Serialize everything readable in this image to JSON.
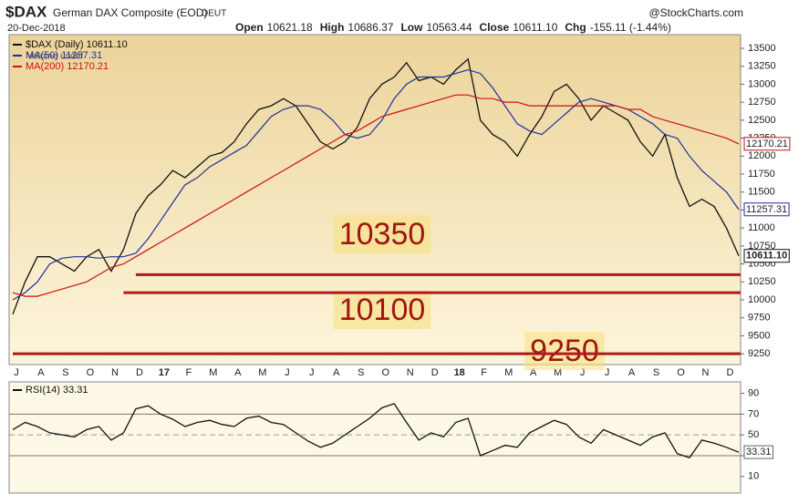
{
  "header": {
    "symbol": "$DAX",
    "name": "German DAX Composite (EOD)",
    "exchange": "DEUT",
    "date": "20-Dec-2018",
    "brand": "@StockCharts.com",
    "quote": [
      [
        "Open",
        "10621.18"
      ],
      [
        "High",
        "10686.37"
      ],
      [
        "Low",
        "10563.44"
      ],
      [
        "Close",
        "10611.10"
      ],
      [
        "Chg",
        "-155.11 (-1.44%)"
      ]
    ],
    "volume_note": "Volume undef"
  },
  "chart_data": [
    {
      "type": "line",
      "categories": [
        "J",
        null,
        "A",
        null,
        "S",
        null,
        "O",
        null,
        "N",
        null,
        "D",
        null,
        "17",
        null,
        "F",
        null,
        "M",
        null,
        "A",
        null,
        "M",
        null,
        "J",
        null,
        "J",
        null,
        "A",
        null,
        "S",
        null,
        "O",
        null,
        "N",
        null,
        "D",
        null,
        "18",
        null,
        "F",
        null,
        "M",
        null,
        "A",
        null,
        "M",
        null,
        "J",
        null,
        "J",
        null,
        "A",
        null,
        "S",
        null,
        "O",
        null,
        "N",
        null,
        "D",
        null
      ],
      "series": [
        {
          "name": "$DAX (Daily) 10611.10",
          "color": "#111111",
          "values": [
            9800,
            10250,
            10600,
            10600,
            10500,
            10400,
            10600,
            10700,
            10400,
            10700,
            11200,
            11450,
            11600,
            11800,
            11700,
            11850,
            12000,
            12050,
            12200,
            12450,
            12650,
            12700,
            12800,
            12700,
            12450,
            12200,
            12100,
            12200,
            12400,
            12800,
            13000,
            13100,
            13300,
            13050,
            13100,
            13000,
            13200,
            13350,
            12500,
            12300,
            12200,
            12000,
            12300,
            12550,
            12900,
            13000,
            12800,
            12500,
            12700,
            12600,
            12500,
            12200,
            12000,
            12300,
            11700,
            11300,
            11400,
            11300,
            11000,
            10611.1
          ],
          "value_labels": [
            null,
            null,
            null,
            null,
            null,
            null,
            null,
            null,
            null,
            null,
            null,
            null,
            null,
            null,
            null,
            null,
            null,
            null,
            null,
            null,
            null,
            null,
            null,
            null,
            null,
            null,
            null,
            null,
            null,
            null,
            null,
            null,
            null,
            null,
            null,
            null,
            null,
            null,
            null,
            null,
            null,
            null,
            null,
            null,
            null,
            null,
            null,
            null,
            null,
            null,
            null,
            null,
            null,
            null,
            null,
            null,
            null,
            null,
            null,
            "10611.10"
          ]
        },
        {
          "name": "MA(50) 11257.31",
          "color": "#1f2f9e",
          "values": [
            10000,
            10100,
            10250,
            10500,
            10580,
            10600,
            10600,
            10580,
            10600,
            10600,
            10650,
            10850,
            11100,
            11350,
            11600,
            11700,
            11850,
            11950,
            12050,
            12150,
            12350,
            12550,
            12650,
            12700,
            12700,
            12650,
            12500,
            12300,
            12250,
            12300,
            12500,
            12800,
            13000,
            13100,
            13100,
            13100,
            13150,
            13200,
            13150,
            12950,
            12700,
            12450,
            12350,
            12300,
            12450,
            12600,
            12750,
            12800,
            12750,
            12700,
            12650,
            12550,
            12450,
            12300,
            12250,
            12000,
            11800,
            11650,
            11500,
            11257.31
          ]
        },
        {
          "name": "MA(200) 12170.21",
          "color": "#cc1111",
          "values": [
            10100,
            10050,
            10050,
            10100,
            10150,
            10200,
            10250,
            10350,
            10450,
            10500,
            10600,
            10700,
            10800,
            10900,
            11000,
            11100,
            11200,
            11300,
            11400,
            11500,
            11600,
            11700,
            11800,
            11900,
            12000,
            12100,
            12200,
            12300,
            12350,
            12450,
            12550,
            12600,
            12650,
            12700,
            12750,
            12800,
            12850,
            12850,
            12800,
            12800,
            12750,
            12750,
            12700,
            12700,
            12700,
            12700,
            12700,
            12700,
            12700,
            12700,
            12650,
            12650,
            12550,
            12500,
            12450,
            12400,
            12350,
            12300,
            12250,
            12170.21
          ]
        }
      ],
      "ylim": [
        9100,
        13690
      ],
      "yticks": [
        9250,
        9500,
        9750,
        10000,
        10250,
        10500,
        10750,
        11000,
        11250,
        11500,
        11750,
        12000,
        12250,
        12500,
        12750,
        13000,
        13250,
        13500
      ],
      "support_levels": [
        10350,
        10100,
        9250
      ]
    },
    {
      "type": "line",
      "series": [
        {
          "name": "RSI(14) 33.31",
          "color": "#111111",
          "values": [
            55,
            62,
            58,
            52,
            50,
            48,
            55,
            58,
            45,
            52,
            75,
            78,
            70,
            65,
            58,
            62,
            64,
            60,
            58,
            66,
            68,
            62,
            60,
            52,
            44,
            38,
            42,
            50,
            58,
            66,
            76,
            80,
            62,
            45,
            52,
            48,
            62,
            66,
            30,
            35,
            40,
            38,
            52,
            58,
            64,
            60,
            48,
            42,
            55,
            50,
            45,
            40,
            48,
            52,
            32,
            28,
            45,
            42,
            38,
            33.31
          ]
        }
      ],
      "ylim": [
        -6,
        101
      ],
      "yticks": [
        10,
        30,
        50,
        70,
        90
      ]
    }
  ]
}
